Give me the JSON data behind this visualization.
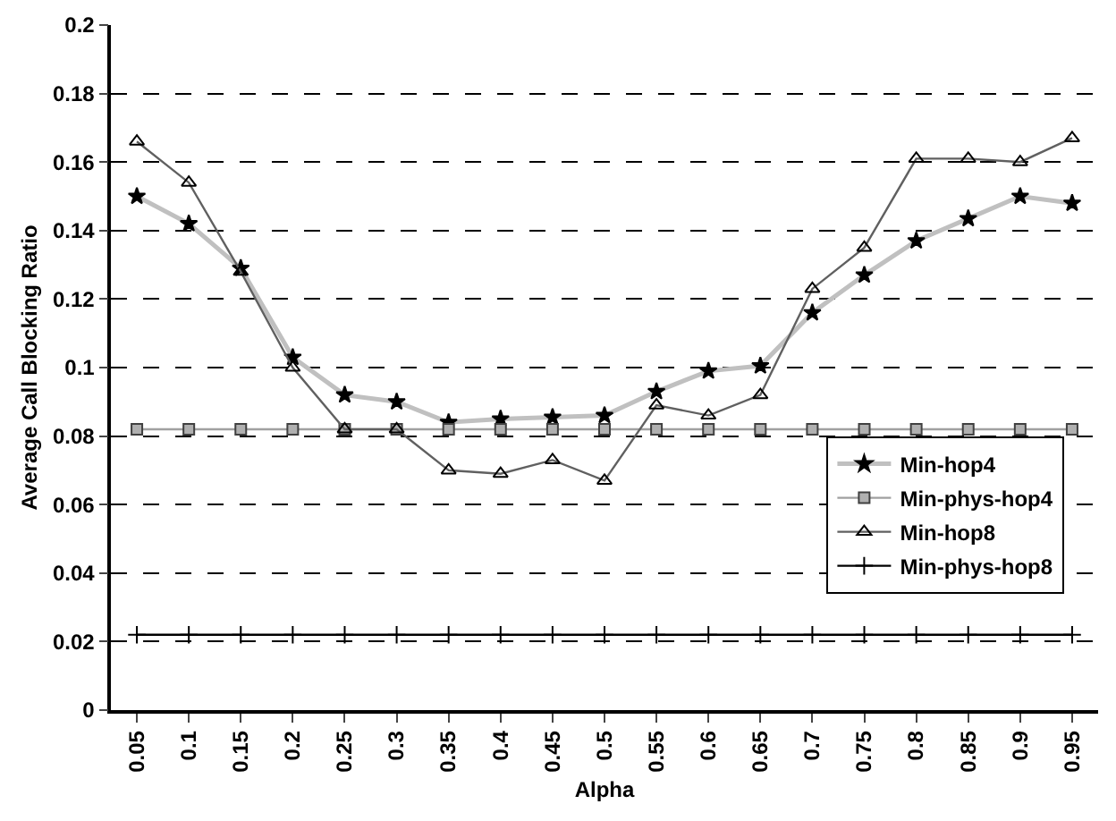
{
  "chart_data": {
    "type": "line",
    "xlabel": "Alpha",
    "ylabel": "Average Call Blocking Ratio",
    "categories": [
      "0.05",
      "0.1",
      "0.15",
      "0.2",
      "0.25",
      "0.3",
      "0.35",
      "0.4",
      "0.45",
      "0.5",
      "0.55",
      "0.6",
      "0.65",
      "0.7",
      "0.75",
      "0.8",
      "0.85",
      "0.9",
      "0.95"
    ],
    "series": [
      {
        "name": "Min-hop4",
        "color": "#c0c0c0",
        "marker": "star",
        "values": [
          0.15,
          0.142,
          0.129,
          0.103,
          0.092,
          0.09,
          0.084,
          0.085,
          0.0855,
          0.086,
          0.093,
          0.099,
          0.1005,
          0.116,
          0.127,
          0.137,
          0.1435,
          0.15,
          0.148
        ]
      },
      {
        "name": "Min-phys-hop4",
        "color": "#a0a0a0",
        "marker": "square",
        "values": [
          0.082,
          0.082,
          0.082,
          0.082,
          0.082,
          0.082,
          0.082,
          0.082,
          0.082,
          0.082,
          0.082,
          0.082,
          0.082,
          0.082,
          0.082,
          0.082,
          0.082,
          0.082,
          0.082
        ]
      },
      {
        "name": "Min-hop8",
        "color": "#606060",
        "marker": "triangle",
        "values": [
          0.166,
          0.154,
          0.128,
          0.1,
          0.082,
          0.082,
          0.07,
          0.069,
          0.073,
          0.067,
          0.089,
          0.086,
          0.092,
          0.123,
          0.135,
          0.161,
          0.161,
          0.16,
          0.167
        ]
      },
      {
        "name": "Min-phys-hop8",
        "color": "#000000",
        "marker": "cross",
        "values": [
          0.022,
          0.022,
          0.022,
          0.022,
          0.022,
          0.022,
          0.022,
          0.022,
          0.022,
          0.022,
          0.022,
          0.022,
          0.022,
          0.022,
          0.022,
          0.022,
          0.022,
          0.022,
          0.022
        ]
      }
    ],
    "ylim": [
      0,
      0.2
    ],
    "yticks": [
      0,
      0.02,
      0.04,
      0.06,
      0.08,
      0.1,
      0.12,
      0.14,
      0.16,
      0.18,
      0.2
    ],
    "grid": "y",
    "legend": "right",
    "line_style": "solid"
  }
}
